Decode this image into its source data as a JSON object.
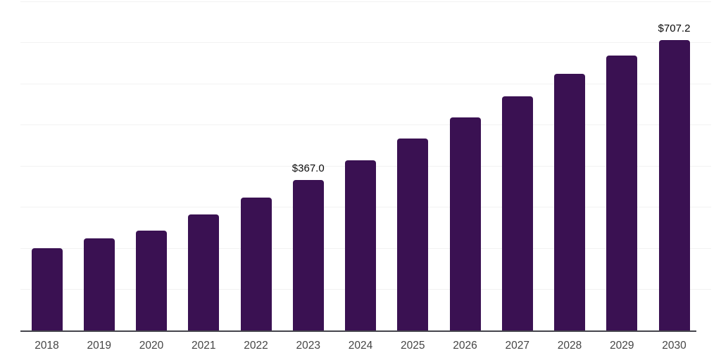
{
  "chart_data": {
    "type": "bar",
    "title": "",
    "xlabel": "",
    "ylabel": "",
    "categories": [
      "2018",
      "2019",
      "2020",
      "2021",
      "2022",
      "2023",
      "2024",
      "2025",
      "2026",
      "2027",
      "2028",
      "2029",
      "2030"
    ],
    "values": [
      202,
      225,
      245,
      283,
      325,
      367.0,
      415,
      468,
      519,
      571,
      625,
      670,
      707.2
    ],
    "labeled_points": [
      {
        "category": "2023",
        "label": "$367.0"
      },
      {
        "category": "2030",
        "label": "$707.2"
      }
    ],
    "ylim": [
      0,
      805
    ],
    "gridline_values": [
      100,
      200,
      300,
      400,
      500,
      600,
      700,
      800
    ],
    "grid": "horizontal-only",
    "legend": "none",
    "y_axis_labels_visible": false,
    "colors": {
      "bar": "#3A1152",
      "axis_line": "#44444C",
      "gridline": "#F2F2F2",
      "value_label": "#0A0A0A",
      "tick_label": "#454545",
      "background": "#FFFFFF"
    }
  }
}
